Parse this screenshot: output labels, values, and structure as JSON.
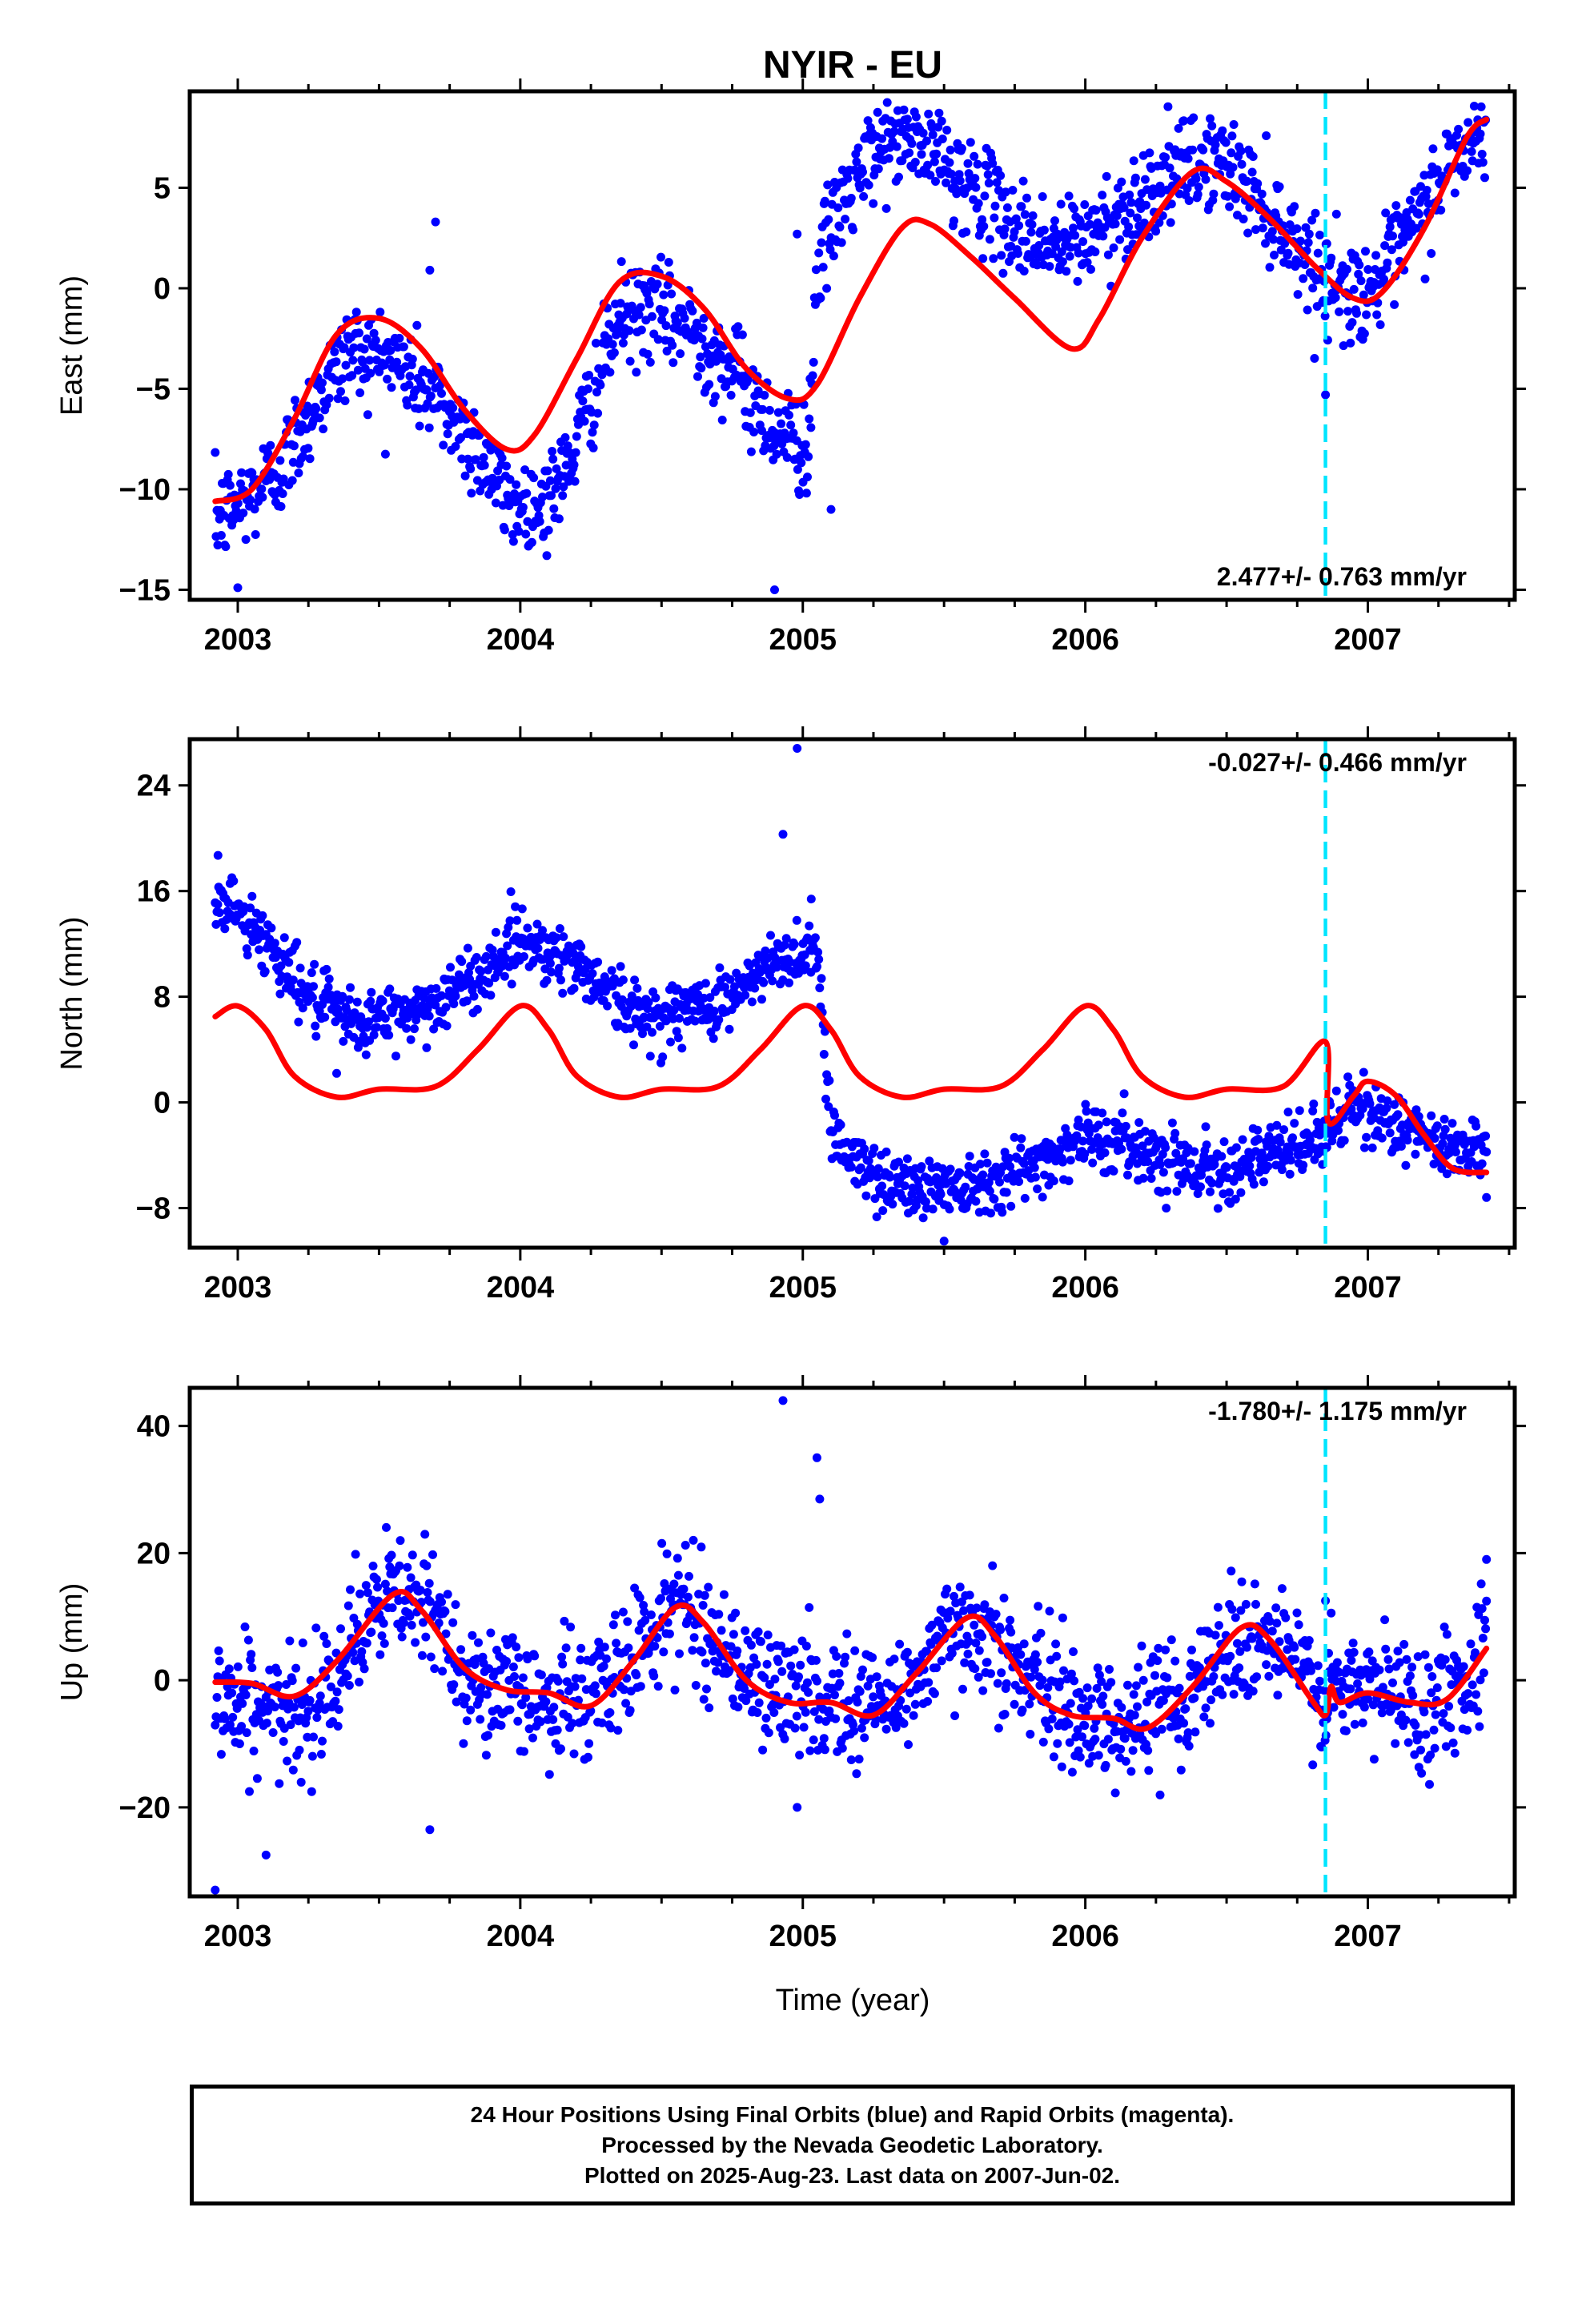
{
  "title": "NYIR - EU",
  "xlabel": "Time (year)",
  "footer": {
    "line1": "24 Hour Positions Using Final Orbits (blue) and Rapid Orbits (magenta).",
    "line2": "Processed by the Nevada Geodetic Laboratory.",
    "line3": "Plotted on 2025-Aug-23. Last data on 2007-Jun-02."
  },
  "colors": {
    "points": "#0000ff",
    "model": "#ff0000",
    "event_line": "#00e5ff",
    "frame": "#000000"
  },
  "chart_data": [
    {
      "type": "scatter",
      "name": "East",
      "ylabel": "East (mm)",
      "rate_label": "2.477+/- 0.763 mm/yr",
      "xlim": [
        2002.83,
        2007.52
      ],
      "ylim": [
        -15.5,
        9.8
      ],
      "yticks": [
        5,
        0,
        -5,
        -10,
        -15
      ],
      "yticklabels": [
        "5",
        "0",
        "−5",
        "−10",
        "−15"
      ],
      "xticks": [
        2003,
        2004,
        2005,
        2006,
        2007
      ],
      "xticklabels": [
        "2003",
        "2004",
        "2005",
        "2006",
        "2007"
      ],
      "event_x": 2006.85,
      "data_range": [
        2002.92,
        2007.42
      ],
      "points_trend": [
        [
          2002.92,
          -11.5
        ],
        [
          2003.0,
          -10.8
        ],
        [
          2003.15,
          -9.0
        ],
        [
          2003.3,
          -5.0
        ],
        [
          2003.4,
          -3.0
        ],
        [
          2003.55,
          -3.5
        ],
        [
          2003.7,
          -5.5
        ],
        [
          2003.85,
          -8.0
        ],
        [
          2003.95,
          -10.5
        ],
        [
          2004.05,
          -11.0
        ],
        [
          2004.15,
          -9.5
        ],
        [
          2004.25,
          -5.5
        ],
        [
          2004.35,
          -1.5
        ],
        [
          2004.45,
          -1.0
        ],
        [
          2004.6,
          -2.0
        ],
        [
          2004.75,
          -4.0
        ],
        [
          2004.9,
          -7.0
        ],
        [
          2005.02,
          -8.0
        ],
        [
          2005.05,
          1.0
        ],
        [
          2005.15,
          4.5
        ],
        [
          2005.3,
          7.5
        ],
        [
          2005.45,
          7.0
        ],
        [
          2005.6,
          5.0
        ],
        [
          2005.75,
          3.0
        ],
        [
          2005.9,
          2.0
        ],
        [
          2006.0,
          2.5
        ],
        [
          2006.15,
          4.0
        ],
        [
          2006.3,
          5.5
        ],
        [
          2006.45,
          6.5
        ],
        [
          2006.55,
          5.5
        ],
        [
          2006.7,
          3.0
        ],
        [
          2006.85,
          0.5
        ],
        [
          2006.95,
          -0.3
        ],
        [
          2007.05,
          0.5
        ],
        [
          2007.2,
          4.0
        ],
        [
          2007.3,
          6.5
        ],
        [
          2007.42,
          7.5
        ]
      ],
      "noise_sd": 1.2,
      "outliers": [
        [
          2003.0,
          -14.9
        ],
        [
          2003.7,
          3.3
        ],
        [
          2003.68,
          0.9
        ],
        [
          2004.9,
          -15.0
        ],
        [
          2004.98,
          2.7
        ],
        [
          2006.85,
          -5.3
        ],
        [
          2005.1,
          -11.0
        ]
      ],
      "model_points": [
        [
          2002.92,
          -10.6
        ],
        [
          2003.05,
          -10.0
        ],
        [
          2003.2,
          -6.5
        ],
        [
          2003.35,
          -2.3
        ],
        [
          2003.5,
          -1.5
        ],
        [
          2003.65,
          -3.0
        ],
        [
          2003.8,
          -6.0
        ],
        [
          2003.95,
          -8.0
        ],
        [
          2004.05,
          -7.3
        ],
        [
          2004.2,
          -3.5
        ],
        [
          2004.35,
          0.3
        ],
        [
          2004.5,
          0.6
        ],
        [
          2004.65,
          -1.0
        ],
        [
          2004.8,
          -4.0
        ],
        [
          2004.95,
          -5.5
        ],
        [
          2005.05,
          -4.8
        ],
        [
          2005.2,
          -0.5
        ],
        [
          2005.35,
          3.0
        ],
        [
          2005.45,
          3.2
        ],
        [
          2005.6,
          1.5
        ],
        [
          2005.75,
          -0.5
        ],
        [
          2005.95,
          -3.0
        ],
        [
          2006.05,
          -1.5
        ],
        [
          2006.2,
          2.5
        ],
        [
          2006.38,
          5.8
        ],
        [
          2006.5,
          5.3
        ],
        [
          2006.65,
          3.5
        ],
        [
          2006.82,
          1.0
        ],
        [
          2006.95,
          -0.5
        ],
        [
          2007.05,
          -0.2
        ],
        [
          2007.2,
          3.0
        ],
        [
          2007.35,
          7.5
        ],
        [
          2007.42,
          8.4
        ]
      ]
    },
    {
      "type": "scatter",
      "name": "North",
      "ylabel": "North (mm)",
      "rate_label": "-0.027+/- 0.466 mm/yr",
      "xlim": [
        2002.83,
        2007.52
      ],
      "ylim": [
        -11,
        27.5
      ],
      "yticks": [
        24,
        16,
        8,
        0,
        -8
      ],
      "yticklabels": [
        "24",
        "16",
        "8",
        "0",
        "−8"
      ],
      "xticks": [
        2003,
        2004,
        2005,
        2006,
        2007
      ],
      "xticklabels": [
        "2003",
        "2004",
        "2005",
        "2006",
        "2007"
      ],
      "event_x": 2006.85,
      "data_range": [
        2002.92,
        2007.42
      ],
      "points_trend": [
        [
          2002.92,
          15.5
        ],
        [
          2003.0,
          14.5
        ],
        [
          2003.15,
          11.0
        ],
        [
          2003.25,
          8.0
        ],
        [
          2003.4,
          6.0
        ],
        [
          2003.55,
          6.5
        ],
        [
          2003.7,
          7.5
        ],
        [
          2003.85,
          9.5
        ],
        [
          2004.0,
          12.5
        ],
        [
          2004.15,
          11.0
        ],
        [
          2004.3,
          9.0
        ],
        [
          2004.4,
          6.5
        ],
        [
          2004.6,
          7.0
        ],
        [
          2004.75,
          8.0
        ],
        [
          2004.9,
          10.5
        ],
        [
          2005.05,
          12.0
        ],
        [
          2005.1,
          -2.0
        ],
        [
          2005.2,
          -5.0
        ],
        [
          2005.4,
          -6.5
        ],
        [
          2005.6,
          -6.0
        ],
        [
          2005.8,
          -5.0
        ],
        [
          2006.0,
          -2.5
        ],
        [
          2006.2,
          -3.5
        ],
        [
          2006.4,
          -5.0
        ],
        [
          2006.6,
          -4.5
        ],
        [
          2006.8,
          -3.0
        ],
        [
          2006.95,
          -0.5
        ],
        [
          2007.1,
          -1.5
        ],
        [
          2007.25,
          -3.5
        ],
        [
          2007.42,
          -3.0
        ]
      ],
      "noise_sd": 1.2,
      "outliers": [
        [
          2004.93,
          20.3
        ],
        [
          2004.98,
          26.8
        ],
        [
          2005.03,
          15.4
        ],
        [
          2002.93,
          18.7
        ],
        [
          2003.35,
          2.2
        ],
        [
          2007.42,
          -7.2
        ],
        [
          2005.5,
          -10.5
        ]
      ],
      "model_points": [
        [
          2002.92,
          6.5
        ],
        [
          2003.0,
          7.3
        ],
        [
          2003.1,
          5.5
        ],
        [
          2003.2,
          2.0
        ],
        [
          2003.35,
          0.4
        ],
        [
          2003.5,
          1.0
        ],
        [
          2003.7,
          1.2
        ],
        [
          2003.85,
          4.0
        ],
        [
          2004.0,
          7.3
        ],
        [
          2004.1,
          5.5
        ],
        [
          2004.2,
          2.0
        ],
        [
          2004.35,
          0.4
        ],
        [
          2004.5,
          1.0
        ],
        [
          2004.7,
          1.2
        ],
        [
          2004.85,
          4.0
        ],
        [
          2005.0,
          7.3
        ],
        [
          2005.1,
          5.5
        ],
        [
          2005.2,
          2.0
        ],
        [
          2005.35,
          0.4
        ],
        [
          2005.5,
          1.0
        ],
        [
          2005.7,
          1.2
        ],
        [
          2005.85,
          4.0
        ],
        [
          2006.0,
          7.3
        ],
        [
          2006.1,
          5.5
        ],
        [
          2006.2,
          2.0
        ],
        [
          2006.35,
          0.4
        ],
        [
          2006.5,
          1.0
        ],
        [
          2006.7,
          1.2
        ],
        [
          2006.85,
          4.6
        ],
        [
          2006.86,
          -1.5
        ],
        [
          2006.95,
          0.5
        ],
        [
          2007.0,
          1.6
        ],
        [
          2007.1,
          0.5
        ],
        [
          2007.2,
          -2.5
        ],
        [
          2007.3,
          -5.0
        ],
        [
          2007.42,
          -5.3
        ]
      ]
    },
    {
      "type": "scatter",
      "name": "Up",
      "ylabel": "Up (mm)",
      "rate_label": "-1.780+/- 1.175 mm/yr",
      "xlim": [
        2002.83,
        2007.52
      ],
      "ylim": [
        -34,
        46
      ],
      "yticks": [
        40,
        20,
        0,
        -20
      ],
      "yticklabels": [
        "40",
        "20",
        "0",
        "−20"
      ],
      "xticks": [
        2003,
        2004,
        2005,
        2006,
        2007
      ],
      "xticklabels": [
        "2003",
        "2004",
        "2005",
        "2006",
        "2007"
      ],
      "event_x": 2006.85,
      "data_range": [
        2002.92,
        2007.42
      ],
      "points_trend": [
        [
          2002.92,
          -3.0
        ],
        [
          2003.1,
          -4.0
        ],
        [
          2003.2,
          -7.0
        ],
        [
          2003.35,
          2.0
        ],
        [
          2003.55,
          14.0
        ],
        [
          2003.7,
          10.0
        ],
        [
          2003.85,
          -1.0
        ],
        [
          2004.1,
          -3.0
        ],
        [
          2004.25,
          -3.0
        ],
        [
          2004.4,
          4.0
        ],
        [
          2004.55,
          13.0
        ],
        [
          2004.7,
          6.0
        ],
        [
          2004.85,
          -1.0
        ],
        [
          2005.1,
          -3.0
        ],
        [
          2005.3,
          -4.0
        ],
        [
          2005.45,
          3.0
        ],
        [
          2005.6,
          10.0
        ],
        [
          2005.75,
          2.0
        ],
        [
          2005.95,
          -5.0
        ],
        [
          2006.15,
          -7.0
        ],
        [
          2006.35,
          -2.0
        ],
        [
          2006.55,
          7.0
        ],
        [
          2006.7,
          5.0
        ],
        [
          2006.85,
          -3.0
        ],
        [
          2007.0,
          -1.0
        ],
        [
          2007.2,
          -4.0
        ],
        [
          2007.35,
          0.0
        ],
        [
          2007.42,
          8.0
        ]
      ],
      "noise_sd": 4.8,
      "outliers": [
        [
          2004.93,
          44.0
        ],
        [
          2005.05,
          35.0
        ],
        [
          2005.06,
          28.5
        ],
        [
          2004.98,
          -20.0
        ],
        [
          2002.92,
          -33.0
        ],
        [
          2003.1,
          -27.5
        ],
        [
          2003.68,
          -23.5
        ],
        [
          2006.85,
          12.5
        ],
        [
          2007.42,
          19.0
        ]
      ],
      "model_points": [
        [
          2002.92,
          -0.3
        ],
        [
          2003.05,
          -0.5
        ],
        [
          2003.2,
          -2.5
        ],
        [
          2003.35,
          3.0
        ],
        [
          2003.55,
          13.5
        ],
        [
          2003.65,
          11.0
        ],
        [
          2003.8,
          2.0
        ],
        [
          2003.95,
          -1.5
        ],
        [
          2004.1,
          -2.0
        ],
        [
          2004.25,
          -4.0
        ],
        [
          2004.4,
          3.0
        ],
        [
          2004.55,
          11.5
        ],
        [
          2004.65,
          9.0
        ],
        [
          2004.8,
          0.0
        ],
        [
          2004.95,
          -3.5
        ],
        [
          2005.1,
          -3.5
        ],
        [
          2005.25,
          -5.5
        ],
        [
          2005.4,
          1.0
        ],
        [
          2005.58,
          9.8
        ],
        [
          2005.68,
          7.0
        ],
        [
          2005.82,
          -2.0
        ],
        [
          2005.95,
          -5.5
        ],
        [
          2006.1,
          -6.0
        ],
        [
          2006.22,
          -7.5
        ],
        [
          2006.38,
          -1.0
        ],
        [
          2006.55,
          8.2
        ],
        [
          2006.65,
          6.5
        ],
        [
          2006.8,
          -3.0
        ],
        [
          2006.85,
          -5.5
        ],
        [
          2006.87,
          -1.0
        ],
        [
          2006.9,
          -3.5
        ],
        [
          2007.0,
          -2.0
        ],
        [
          2007.15,
          -3.5
        ],
        [
          2007.28,
          -3.0
        ],
        [
          2007.42,
          5.0
        ]
      ]
    }
  ]
}
